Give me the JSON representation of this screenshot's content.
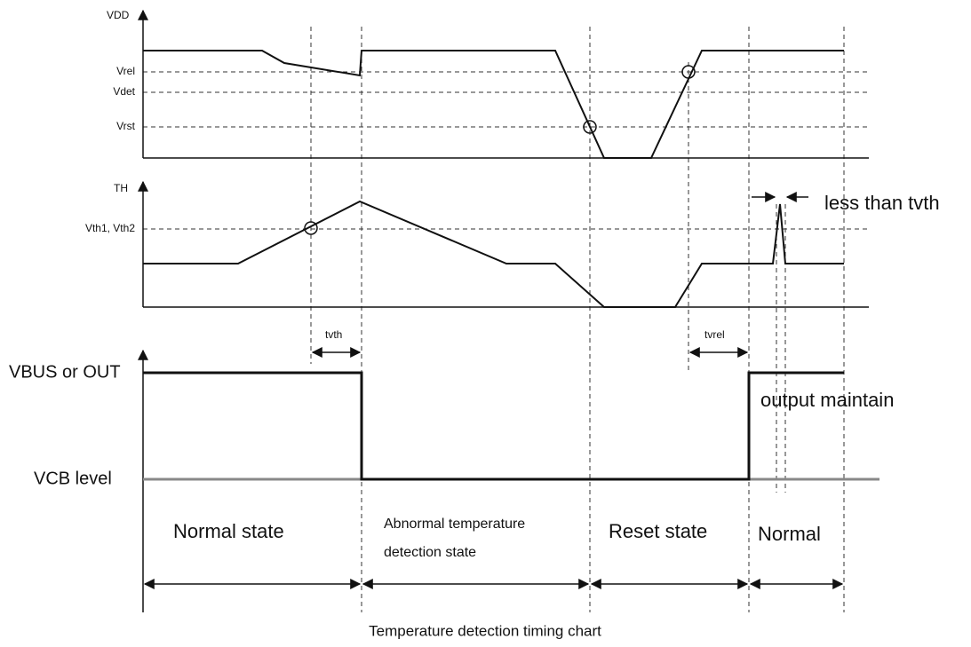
{
  "signals": {
    "vdd": {
      "label": "VDD",
      "levels": [
        "Vrel",
        "Vdet",
        "Vrst"
      ]
    },
    "th": {
      "label": "TH",
      "levels": [
        "Vth1, Vth2"
      ]
    },
    "out": {
      "label": "VBUS or OUT",
      "low_label": "VCB level"
    }
  },
  "intervals": [
    "tvth",
    "tvrel"
  ],
  "annotations": [
    "less than tvth",
    "output maintain"
  ],
  "states": [
    "Normal state",
    "Abnormal temperature",
    "detection state",
    "Reset state",
    "Normal"
  ],
  "caption": "Temperature detection timing chart"
}
